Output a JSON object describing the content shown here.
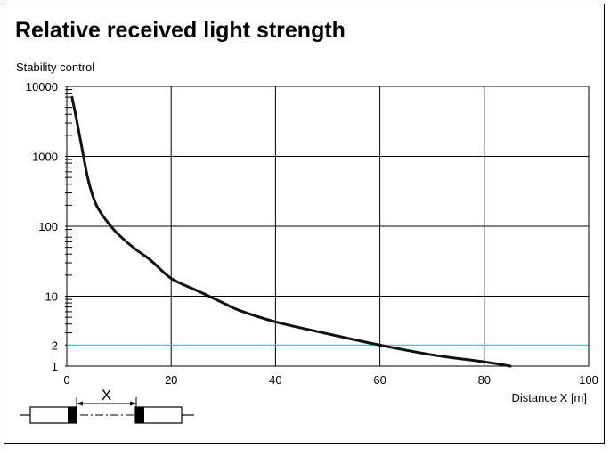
{
  "chart_data": {
    "type": "line",
    "title": "Relative received light strength",
    "xlabel": "Distance X [m]",
    "ylabel": "Stability control",
    "xscale": "linear",
    "yscale": "log",
    "xlim": [
      0,
      100
    ],
    "ylim": [
      1,
      10000
    ],
    "x_ticks": [
      0,
      20,
      40,
      60,
      80,
      100
    ],
    "y_ticks": [
      1,
      2,
      10,
      100,
      1000,
      10000
    ],
    "grid": true,
    "series": [
      {
        "color": "#111111",
        "x": [
          1,
          2,
          3,
          4,
          5,
          6,
          8,
          10,
          13,
          16,
          20,
          25,
          30,
          33,
          40,
          50,
          55,
          60,
          70,
          80,
          85
        ],
        "y": [
          7000,
          3000,
          1200,
          500,
          270,
          180,
          110,
          75,
          48,
          33,
          18,
          12,
          8,
          6.3,
          4.3,
          2.9,
          2.4,
          2.0,
          1.45,
          1.15,
          1.0
        ]
      }
    ],
    "reference_line": {
      "y": 2,
      "color": "#3ec9c9"
    },
    "diagram": {
      "label": "X"
    }
  }
}
